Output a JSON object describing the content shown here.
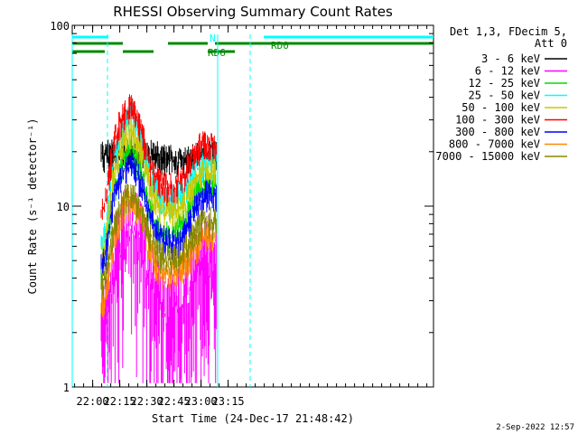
{
  "chart_data": {
    "type": "line",
    "title": "RHESSI Observing Summary Count Rates",
    "xlabel": "Start Time (24-Dec-17 21:48:42)",
    "ylabel": "Count Rate (s⁻¹ detector⁻¹)",
    "yscale": "log",
    "ylim": [
      1,
      100
    ],
    "xlim_minutes_after_start": [
      0,
      200
    ],
    "xticks": [
      {
        "label": "22:00",
        "min": 11.3
      },
      {
        "label": "22:15",
        "min": 26.3
      },
      {
        "label": "22:30",
        "min": 41.3
      },
      {
        "label": "22:45",
        "min": 56.3
      },
      {
        "label": "23:00",
        "min": 71.3
      },
      {
        "label": "23:15",
        "min": 86.3
      }
    ],
    "yticks": [
      {
        "label": "1",
        "value": 1
      },
      {
        "label": "10",
        "value": 10
      },
      {
        "label": "100",
        "value": 100
      }
    ],
    "legend_header": [
      "Det 1,3, FDecim 5,",
      "Att 0"
    ],
    "legend_placement": "right",
    "series": [
      {
        "name": "3 - 6 keV",
        "color": "#000000",
        "values": [
          20,
          20,
          20,
          20,
          20,
          20,
          19.5,
          19,
          18,
          19,
          19,
          20,
          20
        ]
      },
      {
        "name": "6 - 12 keV",
        "color": "#ff00ff",
        "values": [
          2.3,
          5.5,
          7.5,
          8.5,
          7,
          4.5,
          3,
          2.8,
          3,
          3.2,
          4.5,
          5.5,
          5.5
        ]
      },
      {
        "name": "12 - 25 keV",
        "color": "#00dd00",
        "values": [
          5,
          13,
          18,
          22,
          16,
          10,
          7.5,
          7,
          7.5,
          9,
          12,
          14,
          14
        ]
      },
      {
        "name": "25 - 50 keV",
        "color": "#00ffff",
        "values": [
          7,
          19,
          28,
          35,
          25,
          15,
          12,
          11,
          11.5,
          13,
          16,
          18,
          18
        ]
      },
      {
        "name": "50 - 100 keV",
        "color": "#c8c800",
        "values": [
          6,
          16,
          23,
          28,
          21,
          13,
          10,
          9.5,
          10,
          11,
          14,
          16,
          16
        ]
      },
      {
        "name": "100 - 300 keV",
        "color": "#ff0000",
        "values": [
          10,
          24,
          33,
          37,
          28,
          17,
          14,
          13,
          13.5,
          16,
          21,
          23,
          23
        ]
      },
      {
        "name": "300 - 800 keV",
        "color": "#0000ff",
        "values": [
          5,
          12,
          16,
          18,
          14,
          9,
          7,
          6.5,
          6.5,
          7.5,
          10,
          12,
          12
        ]
      },
      {
        "name": "800 - 7000 keV",
        "color": "#ff8800",
        "values": [
          3,
          7,
          10,
          11,
          9,
          6,
          4.5,
          4.5,
          4.5,
          5,
          6,
          7,
          7
        ]
      },
      {
        "name": "7000 - 15000 keV",
        "color": "#888800",
        "values": [
          4,
          8,
          11,
          12,
          10,
          7,
          5.5,
          5.3,
          5.3,
          6,
          7.5,
          8.5,
          8.5
        ]
      }
    ],
    "x_sample_minutes": [
      18,
      23,
      28,
      33,
      38,
      43,
      48,
      53,
      58,
      63,
      68,
      73,
      78
    ],
    "annotations": [
      {
        "label": "N",
        "color": "#00ffff",
        "spans_minutes": [
          [
            0,
            20
          ],
          [
            106,
            200
          ]
        ]
      },
      {
        "label": "RD0",
        "color": "#008800",
        "spans_minutes": [
          [
            0,
            28
          ],
          [
            53,
            75
          ],
          [
            79,
            200
          ]
        ]
      },
      {
        "label": "RD6",
        "color": "#008800",
        "spans_minutes": [
          [
            0,
            18
          ],
          [
            28,
            45
          ],
          [
            75,
            90
          ]
        ]
      }
    ],
    "vlines_minutes": [
      {
        "min": 0,
        "style": "solid"
      },
      {
        "min": 19.5,
        "style": "dashed"
      },
      {
        "min": 80.5,
        "style": "solid"
      },
      {
        "min": 98.5,
        "style": "dashed"
      }
    ],
    "grid": false
  },
  "footer": "2-Sep-2022 12:57"
}
